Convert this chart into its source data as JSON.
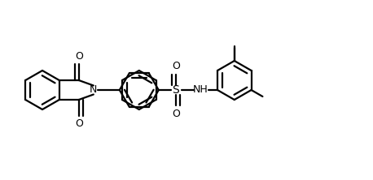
{
  "bg_color": "#ffffff",
  "line_color": "#000000",
  "line_width": 1.6,
  "font_size": 9,
  "figsize": [
    4.58,
    2.22
  ],
  "dpi": 100,
  "xlim": [
    0,
    4.58
  ],
  "ylim": [
    0,
    2.22
  ]
}
